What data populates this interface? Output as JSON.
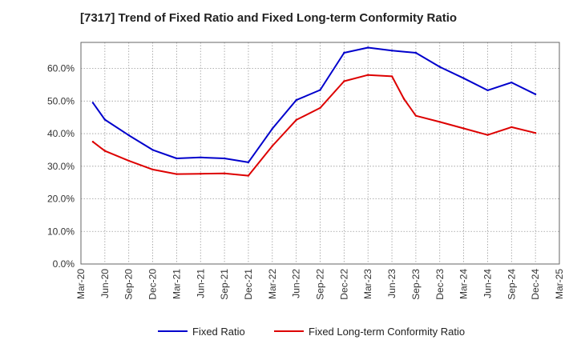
{
  "chart_data": {
    "type": "line",
    "title": "[7317]  Trend of Fixed Ratio and Fixed Long-term Conformity Ratio",
    "xlabel": "",
    "ylabel": "",
    "x_ticks": [
      "Mar-20",
      "Jun-20",
      "Sep-20",
      "Dec-20",
      "Mar-21",
      "Jun-21",
      "Sep-21",
      "Dec-21",
      "Mar-22",
      "Jun-22",
      "Sep-22",
      "Dec-22",
      "Mar-23",
      "Jun-23",
      "Sep-23",
      "Dec-23",
      "Mar-24",
      "Jun-24",
      "Sep-24",
      "Dec-24",
      "Mar-25"
    ],
    "y_ticks": [
      "0.0%",
      "10.0%",
      "20.0%",
      "30.0%",
      "40.0%",
      "50.0%",
      "60.0%"
    ],
    "ylim": [
      0,
      68
    ],
    "grid": true,
    "legend_position": "bottom",
    "series": [
      {
        "name": "Fixed Ratio",
        "color": "#0000cc",
        "x": [
          0.5,
          1,
          2,
          3,
          4,
          5,
          6,
          7,
          8,
          9,
          10,
          11,
          12,
          13,
          14,
          15,
          16,
          17,
          18,
          19
        ],
        "values": [
          49.5,
          44.3,
          39.5,
          35.0,
          32.4,
          32.7,
          32.4,
          31.2,
          41.5,
          50.3,
          53.4,
          64.8,
          66.4,
          65.5,
          64.8,
          60.5,
          57.0,
          53.3,
          55.7,
          52.1
        ]
      },
      {
        "name": "Fixed Long-term Conformity Ratio",
        "color": "#dd0000",
        "x": [
          0.5,
          1,
          2,
          3,
          4,
          5,
          6,
          7,
          8,
          9,
          10,
          11,
          12,
          13,
          13.5,
          14,
          15,
          16,
          17,
          18,
          19
        ],
        "values": [
          37.5,
          34.7,
          31.7,
          29.0,
          27.6,
          27.7,
          27.8,
          27.1,
          36.2,
          44.2,
          47.9,
          56.1,
          58.0,
          57.6,
          50.7,
          45.5,
          43.6,
          41.6,
          39.6,
          42.0,
          40.2
        ]
      }
    ]
  }
}
